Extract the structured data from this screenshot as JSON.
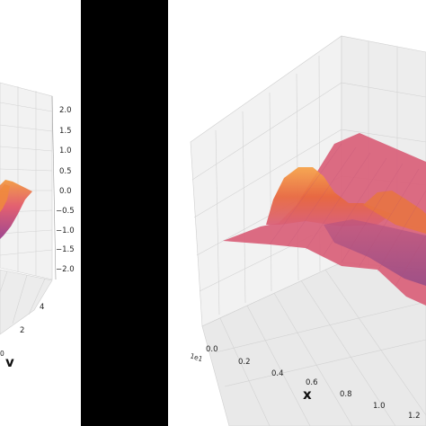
{
  "chart_data": [
    {
      "type": "surface3d",
      "panel": "left",
      "colormap": "plasma",
      "axes": {
        "z_ticks": [
          "2.0",
          "1.5",
          "1.0",
          "0.5",
          "0.0",
          "−0.5",
          "−1.0",
          "−1.5",
          "−2.0"
        ],
        "v_ticks": [
          "4",
          "2"
        ],
        "v_label": "v",
        "partial_tick": "0"
      },
      "zlim": [
        -2.0,
        2.0
      ],
      "grid": true
    },
    {
      "type": "surface3d",
      "panel": "right",
      "colormap": "plasma",
      "axes": {
        "x_ticks": [
          "0.0",
          "0.2",
          "0.4",
          "0.6",
          "0.8",
          "1.0",
          "1.2"
        ],
        "x_label": "x",
        "x_offset": "1e1"
      },
      "grid": true
    }
  ],
  "colors": {
    "separator": "#000000",
    "pane": "#f2f2f2",
    "grid": "#d0d0d0",
    "surface_base": "#d9607a",
    "surface_peak": "#f08a3c",
    "surface_trough": "#7a3f8f"
  }
}
